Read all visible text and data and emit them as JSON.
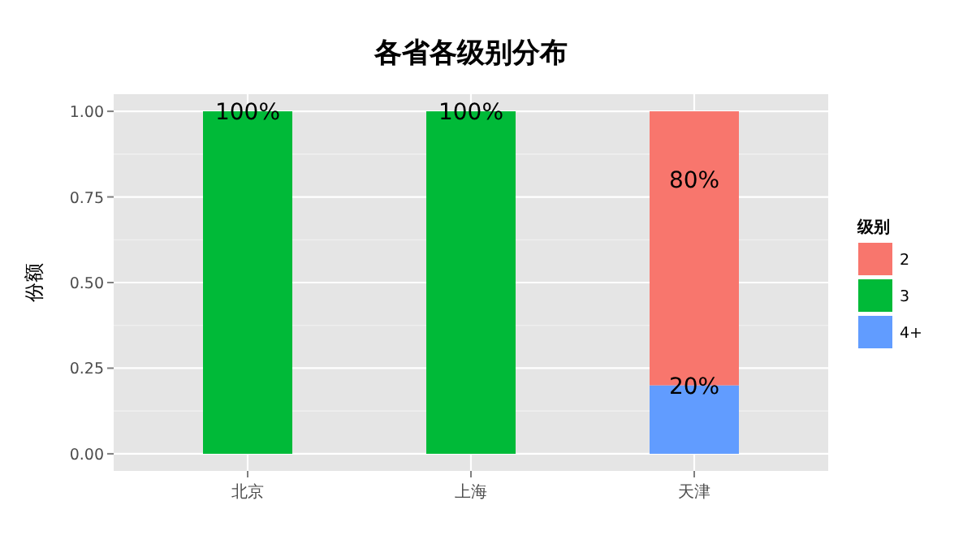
{
  "chart_data": {
    "type": "bar",
    "title": "各省各级别分布",
    "ylabel": "份额",
    "legend_title": "级别",
    "categories": [
      "北京",
      "上海",
      "天津"
    ],
    "stacked": true,
    "ylim": [
      -0.05,
      1.05
    ],
    "yticks": [
      "0.00",
      "0.25",
      "0.50",
      "0.75",
      "1.00"
    ],
    "grid": true,
    "legend": "right",
    "series": [
      {
        "name": "4+",
        "color": "#619cff",
        "values": [
          null,
          null,
          0.2
        ],
        "value_labels": [
          null,
          null,
          "20%"
        ]
      },
      {
        "name": "3",
        "color": "#00ba38",
        "values": [
          1,
          1,
          null
        ],
        "value_labels": [
          "100%",
          "100%",
          null
        ]
      },
      {
        "name": "2",
        "color": "#f8766d",
        "values": [
          null,
          null,
          0.8
        ],
        "value_labels": [
          null,
          null,
          "80%"
        ]
      }
    ]
  }
}
